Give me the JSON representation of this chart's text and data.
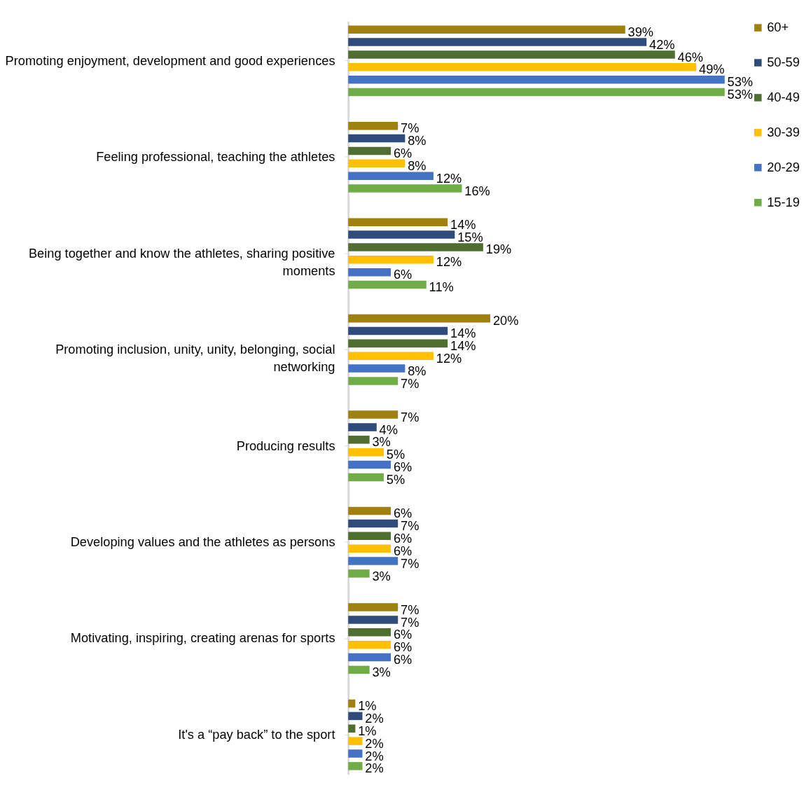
{
  "chart_data": {
    "type": "bar",
    "orientation": "horizontal",
    "legend": "right",
    "categories": [
      "Promoting enjoyment, development and good experiences",
      "Feeling professional, teaching the athletes",
      "Being together and know the athletes, sharing positive moments",
      "Promoting inclusion, unity, unity, belonging, social networking",
      "Producing results",
      "Developing values and the athletes as persons",
      "Motivating, inspiring, creating arenas for sports",
      "It's a “pay back” to the sport"
    ],
    "series": [
      {
        "name": "60+",
        "color": "#a0800f",
        "values": [
          39,
          7,
          14,
          20,
          7,
          6,
          7,
          1
        ],
        "value_labels": [
          "39%",
          "7%",
          "14%",
          "20%",
          "7%",
          "6%",
          "7%",
          "1%"
        ]
      },
      {
        "name": "50-59",
        "color": "#2f4b7c",
        "values": [
          42,
          8,
          15,
          14,
          4,
          7,
          7,
          2
        ],
        "value_labels": [
          "42%",
          "8%",
          "15%",
          "14%",
          "4%",
          "7%",
          "7%",
          "2%"
        ]
      },
      {
        "name": "40-49",
        "color": "#4f6e30",
        "values": [
          46,
          6,
          19,
          14,
          3,
          6,
          6,
          1
        ],
        "value_labels": [
          "46%",
          "6%",
          "19%",
          "14%",
          "3%",
          "6%",
          "6%",
          "1%"
        ]
      },
      {
        "name": "30-39",
        "color": "#ffc000",
        "values": [
          49,
          8,
          12,
          12,
          5,
          6,
          6,
          2
        ],
        "value_labels": [
          "49%",
          "8%",
          "12%",
          "12%",
          "5%",
          "6%",
          "6%",
          "2%"
        ]
      },
      {
        "name": "20-29",
        "color": "#4472c4",
        "values": [
          53,
          12,
          6,
          8,
          6,
          7,
          6,
          2
        ],
        "value_labels": [
          "53%",
          "12%",
          "6%",
          "8%",
          "6%",
          "7%",
          "6%",
          "2%"
        ]
      },
      {
        "name": "15-19",
        "color": "#70ad47",
        "values": [
          53,
          16,
          11,
          7,
          5,
          3,
          3,
          2
        ],
        "value_labels": [
          "53%",
          "16%",
          "11%",
          "7%",
          "5%",
          "3%",
          "3%",
          "2%"
        ]
      }
    ]
  }
}
